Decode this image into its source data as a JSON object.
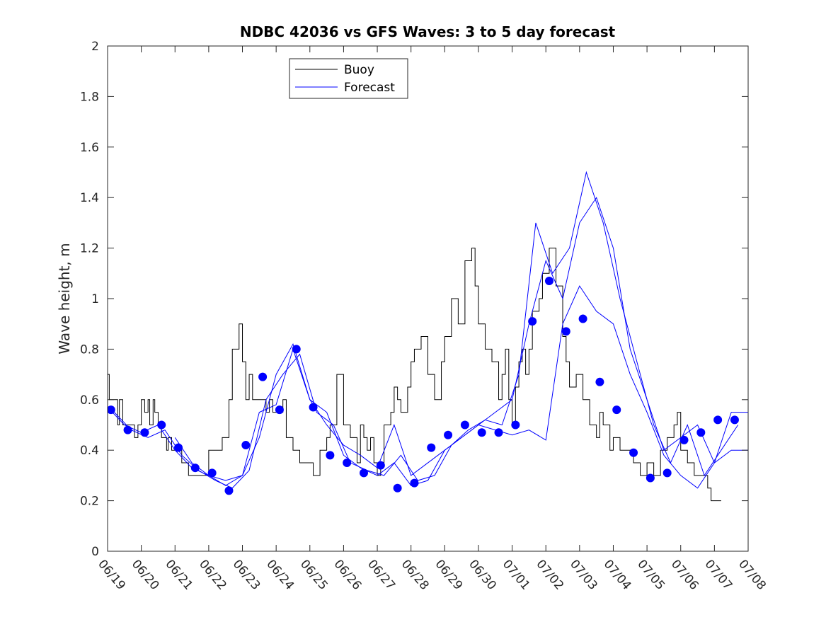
{
  "chart_data": {
    "type": "line",
    "title": "NDBC 42036 vs GFS Waves: 3 to 5 day forecast",
    "xlabel": "",
    "ylabel": "Wave height, m",
    "xlim": [
      0,
      19
    ],
    "ylim": [
      0,
      2
    ],
    "yticks": [
      0,
      0.2,
      0.4,
      0.6,
      0.8,
      1,
      1.2,
      1.4,
      1.6,
      1.8,
      2
    ],
    "ytick_labels": [
      "0",
      "0.2",
      "0.4",
      "0.6",
      "0.8",
      "1",
      "1.2",
      "1.4",
      "1.6",
      "1.8",
      "2"
    ],
    "xtick_labels": [
      "06/19",
      "06/20",
      "06/21",
      "06/22",
      "06/23",
      "06/24",
      "06/25",
      "06/26",
      "06/27",
      "06/28",
      "06/29",
      "06/30",
      "07/01",
      "07/02",
      "07/03",
      "07/04",
      "07/05",
      "07/06",
      "07/07",
      "07/08"
    ],
    "grid": false,
    "legend": {
      "position": "top-left",
      "entries": [
        "Buoy",
        "Forecast"
      ]
    },
    "colors": {
      "buoy": "#000000",
      "forecast": "#0000ff",
      "markers": "#0000ff"
    },
    "series": [
      {
        "name": "Buoy",
        "x": [
          0,
          0.05,
          0.1,
          0.3,
          0.35,
          0.45,
          0.5,
          0.6,
          0.8,
          0.9,
          1.0,
          1.1,
          1.2,
          1.25,
          1.35,
          1.4,
          1.5,
          1.6,
          1.75,
          1.8,
          1.9,
          2.0,
          2.2,
          2.4,
          2.6,
          2.8,
          3.0,
          3.2,
          3.4,
          3.6,
          3.7,
          3.9,
          4.0,
          4.1,
          4.2,
          4.3,
          4.4,
          4.5,
          4.6,
          4.7,
          4.8,
          4.9,
          5.0,
          5.2,
          5.3,
          5.5,
          5.7,
          5.9,
          6.1,
          6.3,
          6.5,
          6.6,
          6.8,
          7.0,
          7.2,
          7.4,
          7.5,
          7.6,
          7.7,
          7.8,
          7.9,
          8.0,
          8.1,
          8.2,
          8.4,
          8.5,
          8.6,
          8.7,
          8.9,
          9.0,
          9.1,
          9.3,
          9.5,
          9.7,
          9.9,
          10.0,
          10.2,
          10.4,
          10.6,
          10.8,
          10.9,
          11.0,
          11.2,
          11.4,
          11.6,
          11.7,
          11.8,
          11.9,
          12.0,
          12.1,
          12.2,
          12.3,
          12.4,
          12.5,
          12.6,
          12.8,
          12.9,
          13.1,
          13.3,
          13.5,
          13.6,
          13.7,
          13.9,
          14.1,
          14.3,
          14.5,
          14.6,
          14.7,
          14.9,
          15.0,
          15.2,
          15.4,
          15.6,
          15.8,
          16.0,
          16.2,
          16.4,
          16.6,
          16.8,
          16.9,
          17.0,
          17.2,
          17.4,
          17.6,
          17.8,
          17.9,
          18.0,
          18.1,
          18.2
        ],
        "values": [
          0.7,
          0.6,
          0.6,
          0.5,
          0.6,
          0.5,
          0.5,
          0.5,
          0.45,
          0.5,
          0.6,
          0.55,
          0.6,
          0.5,
          0.6,
          0.55,
          0.5,
          0.45,
          0.4,
          0.45,
          0.4,
          0.4,
          0.35,
          0.3,
          0.3,
          0.3,
          0.4,
          0.4,
          0.45,
          0.6,
          0.8,
          0.9,
          0.75,
          0.6,
          0.7,
          0.6,
          0.6,
          0.6,
          0.6,
          0.55,
          0.6,
          0.55,
          0.55,
          0.6,
          0.45,
          0.4,
          0.35,
          0.35,
          0.3,
          0.4,
          0.45,
          0.5,
          0.7,
          0.5,
          0.45,
          0.35,
          0.5,
          0.45,
          0.4,
          0.45,
          0.35,
          0.3,
          0.35,
          0.5,
          0.55,
          0.65,
          0.6,
          0.55,
          0.65,
          0.75,
          0.8,
          0.85,
          0.7,
          0.6,
          0.75,
          0.85,
          1.0,
          0.9,
          1.15,
          1.2,
          1.05,
          0.9,
          0.8,
          0.75,
          0.6,
          0.7,
          0.8,
          0.6,
          0.5,
          0.65,
          0.75,
          0.8,
          0.7,
          0.8,
          0.95,
          1.0,
          1.1,
          1.2,
          1.05,
          0.85,
          0.75,
          0.65,
          0.7,
          0.6,
          0.5,
          0.45,
          0.55,
          0.5,
          0.4,
          0.45,
          0.4,
          0.4,
          0.35,
          0.3,
          0.35,
          0.3,
          0.4,
          0.45,
          0.5,
          0.55,
          0.4,
          0.35,
          0.3,
          0.3,
          0.25,
          0.2,
          0.2,
          0.2,
          0.2
        ]
      },
      {
        "name": "Forecast",
        "traces": [
          {
            "x": [
              0.0,
              0.5,
              1.0,
              1.5,
              2.0,
              2.5,
              3.0,
              3.5,
              4.0,
              4.5,
              5.0,
              5.5,
              6.0,
              6.5,
              7.0,
              7.5,
              8.0,
              8.5,
              9.0,
              9.5,
              10.0,
              10.5,
              11.0,
              11.5,
              12.0,
              12.5,
              13.0,
              13.5,
              14.0,
              14.5,
              15.0,
              15.5,
              16.0,
              16.5,
              17.0,
              17.5,
              18.0,
              18.5,
              19.0
            ],
            "values": [
              0.57,
              0.5,
              0.47,
              0.5,
              0.4,
              0.33,
              0.3,
              0.26,
              0.3,
              0.55,
              0.58,
              0.8,
              0.6,
              0.55,
              0.38,
              0.33,
              0.3,
              0.35,
              0.26,
              0.28,
              0.4,
              0.45,
              0.5,
              0.48,
              0.46,
              0.48,
              0.44,
              0.9,
              1.05,
              0.95,
              0.9,
              0.7,
              0.55,
              0.38,
              0.3,
              0.25,
              0.35,
              0.55,
              0.55
            ]
          },
          {
            "x": [
              0.2,
              0.7,
              1.2,
              1.7,
              2.2,
              2.7,
              3.2,
              3.7,
              4.2,
              4.7,
              5.2,
              5.7,
              6.2,
              6.7,
              7.2,
              7.7,
              8.2,
              8.7,
              9.2,
              9.7,
              10.2,
              10.7,
              11.2,
              11.7,
              12.2,
              12.7,
              13.2,
              13.7,
              14.2,
              14.7,
              15.2,
              15.7,
              16.2,
              16.7,
              17.2,
              17.7,
              18.2,
              18.7
            ],
            "values": [
              0.55,
              0.48,
              0.45,
              0.48,
              0.38,
              0.32,
              0.28,
              0.25,
              0.32,
              0.6,
              0.7,
              0.78,
              0.55,
              0.5,
              0.35,
              0.32,
              0.3,
              0.38,
              0.28,
              0.3,
              0.42,
              0.48,
              0.52,
              0.5,
              0.7,
              1.3,
              1.1,
              1.2,
              1.5,
              1.3,
              1.0,
              0.75,
              0.5,
              0.35,
              0.5,
              0.3,
              0.4,
              0.5
            ]
          },
          {
            "x": [
              2.0,
              2.5,
              3.0,
              3.5,
              4.0,
              4.5,
              5.0,
              5.5,
              6.0,
              6.5,
              7.0,
              7.5,
              8.0,
              8.5,
              9.0,
              9.5,
              10.0,
              10.5,
              11.0,
              11.5,
              12.0,
              12.5,
              13.0,
              13.5,
              14.0,
              14.5,
              15.0,
              15.5,
              16.0,
              16.5,
              17.0,
              17.5,
              18.0,
              18.5,
              19.0
            ],
            "values": [
              0.45,
              0.35,
              0.3,
              0.28,
              0.3,
              0.45,
              0.7,
              0.82,
              0.6,
              0.5,
              0.42,
              0.38,
              0.33,
              0.5,
              0.3,
              0.35,
              0.4,
              0.45,
              0.5,
              0.55,
              0.6,
              0.9,
              1.15,
              1.0,
              1.3,
              1.4,
              1.2,
              0.8,
              0.6,
              0.4,
              0.45,
              0.5,
              0.35,
              0.4,
              0.4
            ]
          }
        ]
      },
      {
        "name": "Forecast points",
        "x": [
          0.1,
          0.6,
          1.1,
          1.6,
          2.1,
          2.6,
          3.1,
          3.6,
          4.1,
          4.6,
          5.1,
          5.6,
          6.1,
          6.6,
          7.1,
          7.6,
          8.1,
          8.6,
          9.1,
          9.6,
          10.1,
          10.6,
          11.1,
          11.6,
          12.1,
          12.6,
          13.1,
          13.6,
          14.1,
          14.6,
          15.1,
          15.6,
          16.1,
          16.6,
          17.1,
          17.6,
          18.1,
          18.6
        ],
        "values": [
          0.56,
          0.48,
          0.47,
          0.5,
          0.41,
          0.33,
          0.31,
          0.24,
          0.42,
          0.69,
          0.56,
          0.8,
          0.57,
          0.38,
          0.35,
          0.31,
          0.34,
          0.25,
          0.27,
          0.41,
          0.46,
          0.5,
          0.47,
          0.47,
          0.5,
          0.91,
          1.07,
          0.87,
          0.92,
          0.67,
          0.56,
          0.39,
          0.29,
          0.31,
          0.44,
          0.47,
          0.52,
          0.52
        ]
      }
    ]
  }
}
